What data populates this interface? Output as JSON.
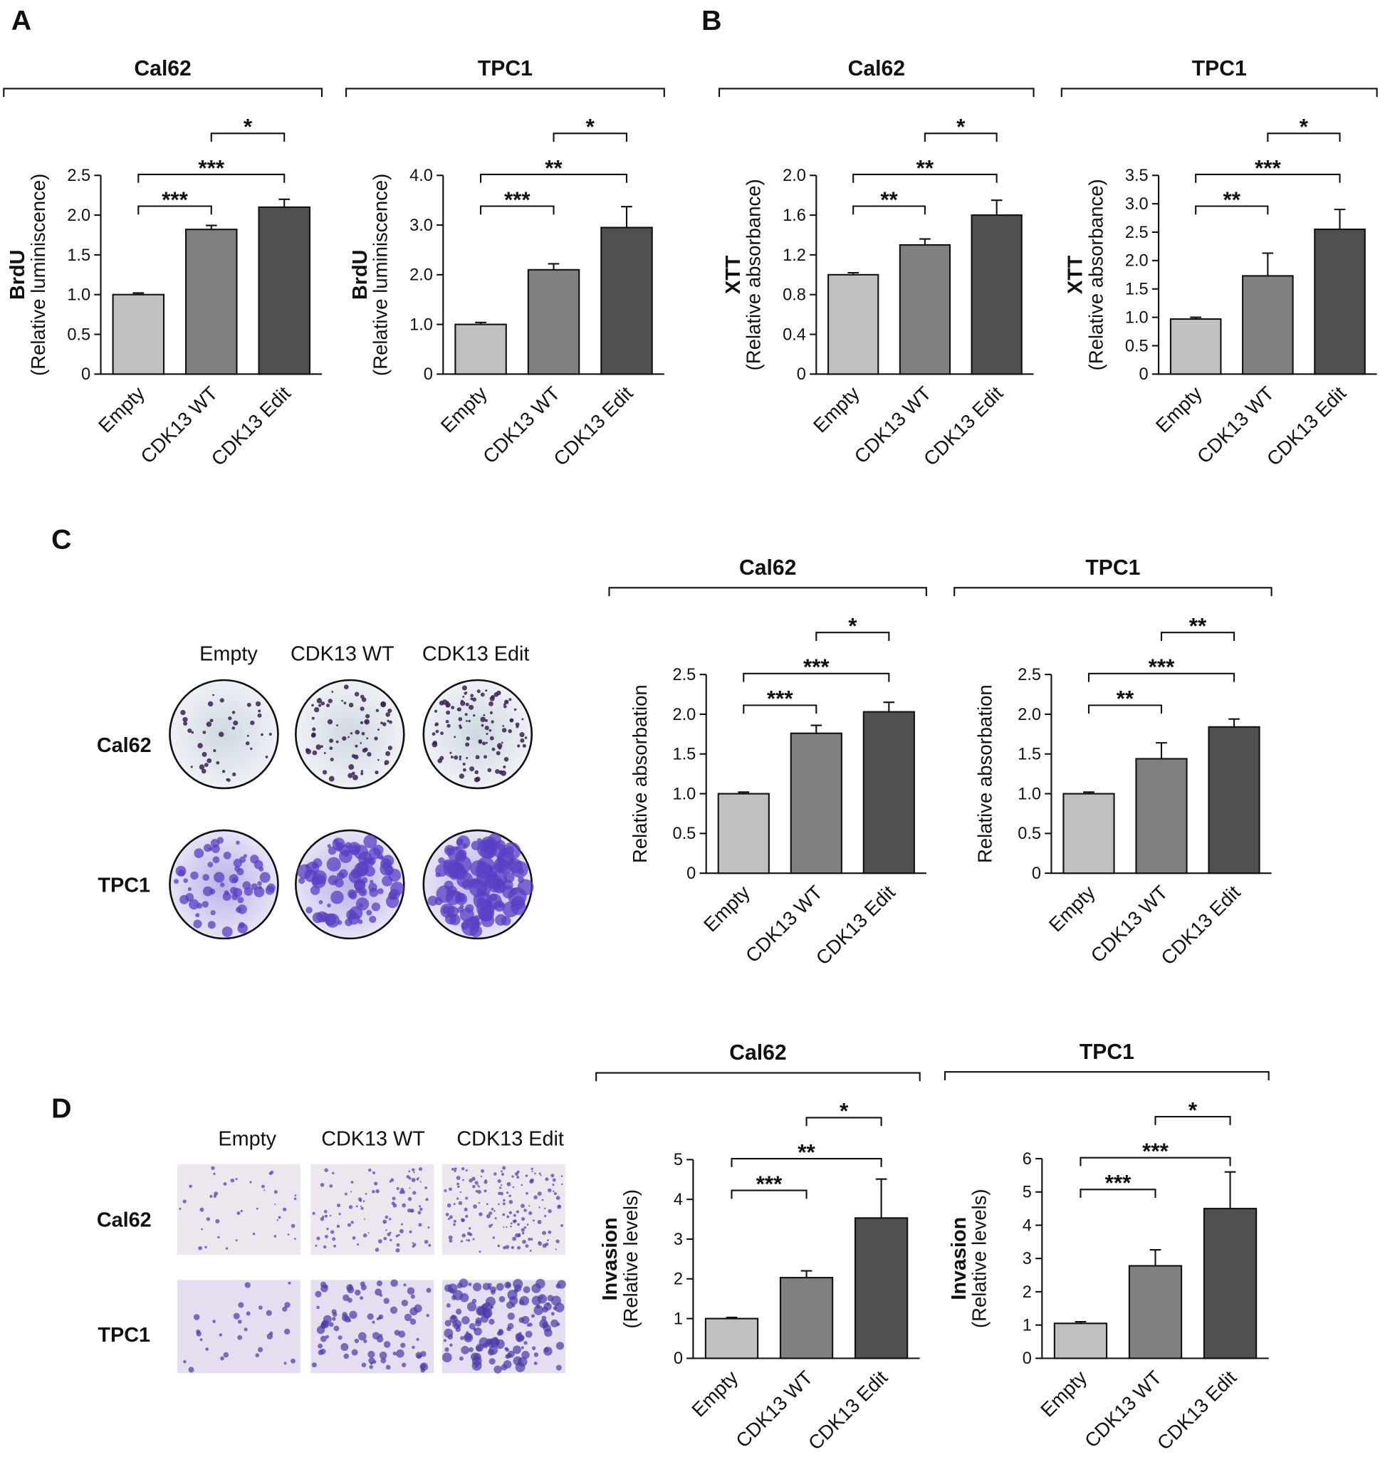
{
  "panels": {
    "labels": [
      "A",
      "B",
      "C",
      "D"
    ]
  },
  "plates": {
    "C": {
      "columns": [
        "Empty",
        "CDK13 WT",
        "CDK13 Edit"
      ],
      "rows": [
        "Cal62",
        "TPC1"
      ]
    },
    "D": {
      "columns": [
        "Empty",
        "CDK13 WT",
        "CDK13 Edit"
      ],
      "rows": [
        "Cal62",
        "TPC1"
      ]
    }
  },
  "chart_data": [
    {
      "type": "bar",
      "title": "Cal62",
      "y_label_bold": "BrdU",
      "y_label": "(Relative luminiscence)",
      "categories": [
        "Empty",
        "CDK13 WT",
        "CDK13 Edit"
      ],
      "values": [
        1.0,
        1.82,
        2.1
      ],
      "errors": [
        0.02,
        0.05,
        0.1
      ],
      "colors": [
        "#c0c0c0",
        "#808080",
        "#505050"
      ],
      "ylim": [
        0,
        2.5
      ],
      "yticks": [
        0,
        0.5,
        {
          "value": 1,
          "label": "1.0"
        },
        1.5,
        {
          "value": 2,
          "label": "2.0"
        },
        2.5
      ],
      "significance": [
        "***",
        "***",
        "*"
      ]
    },
    {
      "type": "bar",
      "title": "TPC1",
      "y_label_bold": "BrdU",
      "y_label": "(Relative luminiscence)",
      "categories": [
        "Empty",
        "CDK13 WT",
        "CDK13 Edit"
      ],
      "values": [
        1.0,
        2.1,
        2.95
      ],
      "errors": [
        0.04,
        0.12,
        0.42
      ],
      "colors": [
        "#c0c0c0",
        "#808080",
        "#505050"
      ],
      "ylim": [
        0,
        4
      ],
      "yticks": [
        0,
        {
          "value": 1,
          "label": "1.0"
        },
        {
          "value": 2,
          "label": "2.0"
        },
        {
          "value": 3,
          "label": "3.0"
        },
        {
          "value": 4,
          "label": "4.0"
        }
      ],
      "significance": [
        "***",
        "**",
        "*"
      ]
    },
    {
      "type": "bar",
      "title": "Cal62",
      "y_label_bold": "XTT",
      "y_label": "(Relative absorbance)",
      "categories": [
        "Empty",
        "CDK13 WT",
        "CDK13 Edit"
      ],
      "values": [
        1.0,
        1.3,
        1.6
      ],
      "errors": [
        0.02,
        0.06,
        0.15
      ],
      "colors": [
        "#c0c0c0",
        "#808080",
        "#505050"
      ],
      "ylim": [
        0,
        2
      ],
      "yticks": [
        0,
        0.4,
        0.8,
        1.2,
        1.6,
        {
          "value": 2,
          "label": "2.0"
        }
      ],
      "significance": [
        "**",
        "**",
        "*"
      ]
    },
    {
      "type": "bar",
      "title": "TPC1",
      "y_label_bold": "XTT",
      "y_label": "(Relative absorbance)",
      "categories": [
        "Empty",
        "CDK13 WT",
        "CDK13 Edit"
      ],
      "values": [
        0.97,
        1.73,
        2.55
      ],
      "errors": [
        0.03,
        0.4,
        0.35
      ],
      "colors": [
        "#c0c0c0",
        "#808080",
        "#505050"
      ],
      "ylim": [
        0,
        3.5
      ],
      "yticks": [
        0,
        0.5,
        {
          "value": 1,
          "label": "1.0"
        },
        1.5,
        {
          "value": 2,
          "label": "2.0"
        },
        2.5,
        {
          "value": 3,
          "label": "3.0"
        },
        3.5
      ],
      "significance": [
        "**",
        "***",
        "*"
      ]
    },
    {
      "type": "bar",
      "title": "Cal62",
      "y_label": "Relative absorbation",
      "categories": [
        "Empty",
        "CDK13 WT",
        "CDK13 Edit"
      ],
      "values": [
        1.0,
        1.76,
        2.03
      ],
      "errors": [
        0.02,
        0.1,
        0.12
      ],
      "colors": [
        "#c0c0c0",
        "#808080",
        "#505050"
      ],
      "ylim": [
        0,
        2.5
      ],
      "yticks": [
        0,
        0.5,
        {
          "value": 1,
          "label": "1.0"
        },
        1.5,
        {
          "value": 2,
          "label": "2.0"
        },
        2.5
      ],
      "significance": [
        "***",
        "***",
        "*"
      ]
    },
    {
      "type": "bar",
      "title": "TPC1",
      "y_label": "Relative absorbation",
      "categories": [
        "Empty",
        "CDK13 WT",
        "CDK13 Edit"
      ],
      "values": [
        1.0,
        1.44,
        1.84
      ],
      "errors": [
        0.02,
        0.2,
        0.1
      ],
      "colors": [
        "#c0c0c0",
        "#808080",
        "#505050"
      ],
      "ylim": [
        0,
        2.5
      ],
      "yticks": [
        0,
        0.5,
        {
          "value": 1,
          "label": "1.0"
        },
        1.5,
        {
          "value": 2,
          "label": "2.0"
        },
        2.5
      ],
      "significance": [
        "**",
        "***",
        "**"
      ]
    },
    {
      "type": "bar",
      "title": "Cal62",
      "y_label_bold": "Invasion",
      "y_label": "(Relative levels)",
      "categories": [
        "Empty",
        "CDK13 WT",
        "CDK13 Edit"
      ],
      "values": [
        1.0,
        2.03,
        3.53
      ],
      "errors": [
        0.03,
        0.17,
        0.98
      ],
      "colors": [
        "#c0c0c0",
        "#808080",
        "#505050"
      ],
      "ylim": [
        0,
        5
      ],
      "yticks": [
        0,
        1,
        2,
        3,
        4,
        5
      ],
      "significance": [
        "***",
        "**",
        "*"
      ]
    },
    {
      "type": "bar",
      "title": "TPC1",
      "y_label_bold": "Invasion",
      "y_label": "(Relative levels)",
      "categories": [
        "Empty",
        "CDK13 WT",
        "CDK13 Edit"
      ],
      "values": [
        1.05,
        2.78,
        4.5
      ],
      "errors": [
        0.05,
        0.48,
        1.1
      ],
      "colors": [
        "#c0c0c0",
        "#808080",
        "#505050"
      ],
      "ylim": [
        0,
        6
      ],
      "yticks": [
        0,
        1,
        2,
        3,
        4,
        5,
        6
      ],
      "significance": [
        "***",
        "***",
        "*"
      ]
    }
  ]
}
